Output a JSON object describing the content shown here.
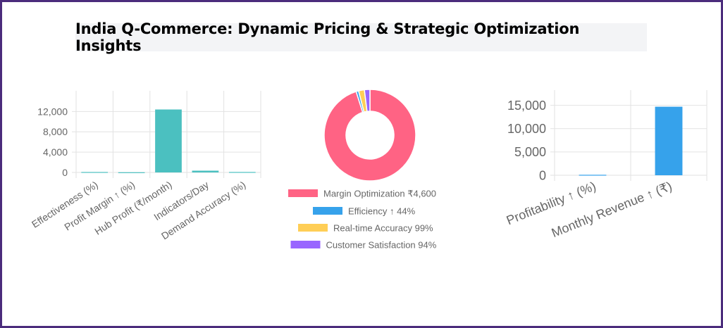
{
  "title": "India Q-Commerce: Dynamic Pricing & Strategic Optimization Insights",
  "chart_data": [
    {
      "type": "bar",
      "categories": [
        "Effectiveness (%)",
        "Profit Margin ↑ (%)",
        "Hub Profit (₹/month)",
        "Indicators/Day",
        "Demand Accuracy (%)"
      ],
      "values": [
        90,
        40,
        12400,
        350,
        95
      ],
      "ylim": [
        0,
        14000
      ],
      "yticks": [
        0,
        4000,
        8000,
        12000
      ],
      "ytick_labels": [
        "0",
        "4,000",
        "8,000",
        "12,000"
      ],
      "color": "#4bc0c0",
      "grid": true
    },
    {
      "type": "pie",
      "donut": true,
      "labels": [
        "Margin Optimization ₹4,600",
        "Efficiency ↑ 44%",
        "Real-time Accuracy 99%",
        "Customer Satisfaction 94%"
      ],
      "values": [
        4600,
        44,
        99,
        94
      ],
      "colors": [
        "#ff6384",
        "#36a2eb",
        "#ffce56",
        "#9966ff"
      ],
      "legend": "bottom"
    },
    {
      "type": "bar",
      "categories": [
        "Profitability ↑ (%)",
        "Monthly Revenue ↑ (₹)"
      ],
      "values": [
        100,
        14700
      ],
      "ylim": [
        0,
        16000
      ],
      "yticks": [
        0,
        5000,
        10000,
        15000
      ],
      "ytick_labels": [
        "0",
        "5,000",
        "10,000",
        "15,000"
      ],
      "color": "#36a2eb",
      "grid": true
    }
  ]
}
